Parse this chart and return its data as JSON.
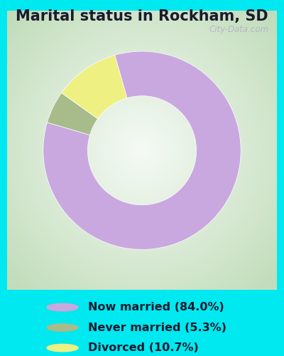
{
  "title": "Marital status in Rockham, SD",
  "background_cyan": "#00e8f0",
  "background_chart_top_left": "#c8e6c0",
  "background_chart_center": "#f0f8f0",
  "slices": [
    84.0,
    5.3,
    10.7
  ],
  "colors": [
    "#c9a8df",
    "#a8bb8a",
    "#eef082"
  ],
  "labels": [
    "Now married (84.0%)",
    "Never married (5.3%)",
    "Divorced (10.7%)"
  ],
  "legend_colors": [
    "#c9a8df",
    "#a8bb8a",
    "#eef082"
  ],
  "watermark": "City-Data.com",
  "donut_width": 0.45,
  "title_fontsize": 15,
  "legend_fontsize": 11.5,
  "startangle": 106
}
